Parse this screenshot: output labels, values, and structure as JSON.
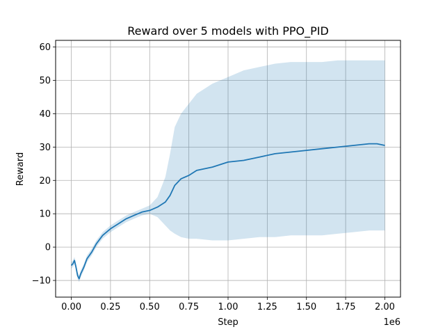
{
  "chart_data": {
    "type": "line",
    "title": "Reward over 5 models with PPO_PID",
    "xlabel": "Step",
    "ylabel": "Reward",
    "x_scale_label": "1e6",
    "xlim": [
      -0.1,
      2.1
    ],
    "ylim": [
      -15,
      62
    ],
    "x_ticks": [
      0.0,
      0.25,
      0.5,
      0.75,
      1.0,
      1.25,
      1.5,
      1.75,
      2.0
    ],
    "x_tick_labels": [
      "0.00",
      "0.25",
      "0.50",
      "0.75",
      "1.00",
      "1.25",
      "1.50",
      "1.75",
      "2.00"
    ],
    "y_ticks": [
      -10,
      0,
      10,
      20,
      30,
      40,
      50,
      60
    ],
    "y_tick_labels": [
      "−10",
      "0",
      "10",
      "20",
      "30",
      "40",
      "50",
      "60"
    ],
    "grid": true,
    "legend": "none",
    "line_color": "#1f77b4",
    "band_color": "#1f77b4",
    "band_opacity": 0.2,
    "series": [
      {
        "x": [
          0.0,
          0.01,
          0.02,
          0.03,
          0.04,
          0.05,
          0.06,
          0.08,
          0.1,
          0.13,
          0.16,
          0.2,
          0.25,
          0.3,
          0.35,
          0.4,
          0.45,
          0.5,
          0.55,
          0.6,
          0.63,
          0.66,
          0.7,
          0.75,
          0.8,
          0.9,
          1.0,
          1.1,
          1.2,
          1.3,
          1.4,
          1.5,
          1.6,
          1.7,
          1.8,
          1.9,
          1.95,
          2.0
        ],
        "mean": [
          -5.5,
          -5.0,
          -4.0,
          -6.0,
          -8.5,
          -9.5,
          -8.0,
          -6.0,
          -3.5,
          -1.5,
          1.0,
          3.5,
          5.5,
          7.0,
          8.5,
          9.5,
          10.5,
          11.0,
          12.0,
          13.5,
          15.5,
          18.5,
          20.5,
          21.5,
          23.0,
          24.0,
          25.5,
          26.0,
          27.0,
          28.0,
          28.5,
          29.0,
          29.5,
          30.0,
          30.5,
          31.0,
          31.0,
          30.5
        ],
        "lower": [
          -6.5,
          -6.0,
          -5.0,
          -7.0,
          -9.5,
          -10.5,
          -9.0,
          -7.0,
          -4.5,
          -2.5,
          0.0,
          2.5,
          4.5,
          6.0,
          7.5,
          8.5,
          9.5,
          10.0,
          9.0,
          6.5,
          5.0,
          4.0,
          3.0,
          2.5,
          2.5,
          2.0,
          2.0,
          2.5,
          3.0,
          3.0,
          3.5,
          3.5,
          3.5,
          4.0,
          4.5,
          5.0,
          5.0,
          5.0
        ],
        "upper": [
          -4.5,
          -4.0,
          -3.0,
          -5.0,
          -7.5,
          -8.5,
          -7.0,
          -5.0,
          -2.5,
          -0.5,
          2.0,
          4.5,
          6.5,
          8.0,
          9.5,
          10.5,
          11.5,
          12.5,
          15.0,
          21.0,
          28.0,
          36.0,
          40.0,
          43.0,
          46.0,
          49.0,
          51.0,
          53.0,
          54.0,
          55.0,
          55.5,
          55.5,
          55.5,
          56.0,
          56.0,
          56.0,
          56.0,
          56.0
        ]
      }
    ]
  }
}
